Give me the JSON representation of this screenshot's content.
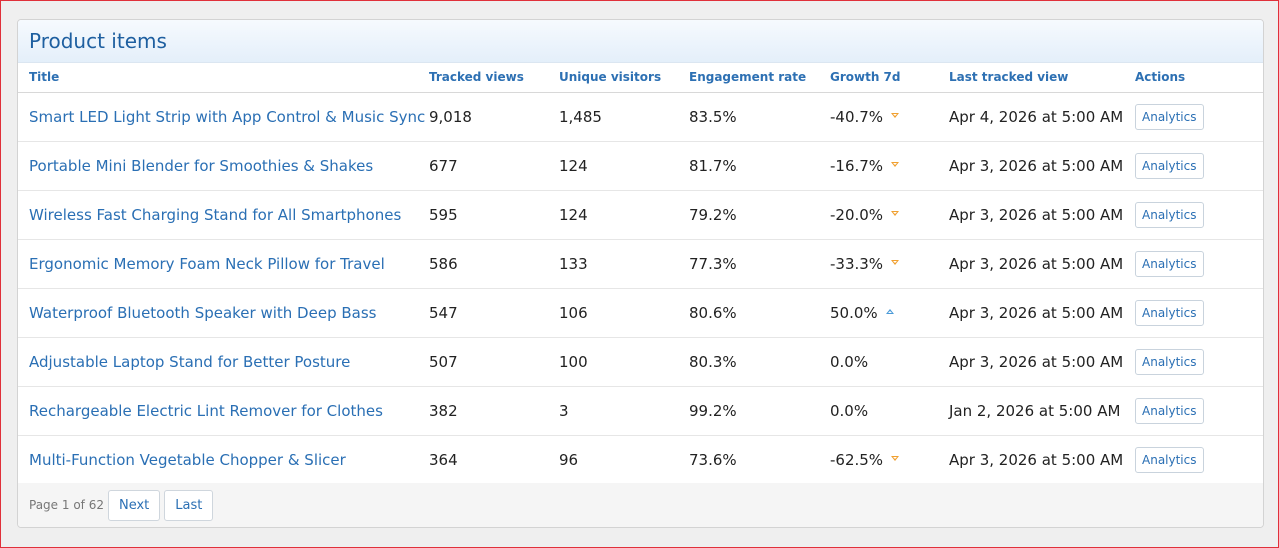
{
  "panel": {
    "title": "Product items"
  },
  "table": {
    "headers": {
      "title": "Title",
      "tracked_views": "Tracked views",
      "unique_visitors": "Unique visitors",
      "engagement_rate": "Engagement rate",
      "growth_7d": "Growth 7d",
      "last_tracked_view": "Last tracked view",
      "actions": "Actions"
    },
    "rows": [
      {
        "title": "Smart LED Light Strip with App Control & Music Sync",
        "tracked_views": "9,018",
        "unique_visitors": "1,485",
        "engagement_rate": "83.5%",
        "growth": "-40.7%",
        "trend": "down",
        "last_tracked": "Apr 4, 2026 at 5:00 AM",
        "action": "Analytics"
      },
      {
        "title": "Portable Mini Blender for Smoothies & Shakes",
        "tracked_views": "677",
        "unique_visitors": "124",
        "engagement_rate": "81.7%",
        "growth": "-16.7%",
        "trend": "down",
        "last_tracked": "Apr 3, 2026 at 5:00 AM",
        "action": "Analytics"
      },
      {
        "title": "Wireless Fast Charging Stand for All Smartphones",
        "tracked_views": "595",
        "unique_visitors": "124",
        "engagement_rate": "79.2%",
        "growth": "-20.0%",
        "trend": "down",
        "last_tracked": "Apr 3, 2026 at 5:00 AM",
        "action": "Analytics"
      },
      {
        "title": "Ergonomic Memory Foam Neck Pillow for Travel",
        "tracked_views": "586",
        "unique_visitors": "133",
        "engagement_rate": "77.3%",
        "growth": "-33.3%",
        "trend": "down",
        "last_tracked": "Apr 3, 2026 at 5:00 AM",
        "action": "Analytics"
      },
      {
        "title": "Waterproof Bluetooth Speaker with Deep Bass",
        "tracked_views": "547",
        "unique_visitors": "106",
        "engagement_rate": "80.6%",
        "growth": "50.0%",
        "trend": "up",
        "last_tracked": "Apr 3, 2026 at 5:00 AM",
        "action": "Analytics"
      },
      {
        "title": "Adjustable Laptop Stand for Better Posture",
        "tracked_views": "507",
        "unique_visitors": "100",
        "engagement_rate": "80.3%",
        "growth": "0.0%",
        "trend": "none",
        "last_tracked": "Apr 3, 2026 at 5:00 AM",
        "action": "Analytics"
      },
      {
        "title": "Rechargeable Electric Lint Remover for Clothes",
        "tracked_views": "382",
        "unique_visitors": "3",
        "engagement_rate": "99.2%",
        "growth": "0.0%",
        "trend": "none",
        "last_tracked": "Jan 2, 2026 at 5:00 AM",
        "action": "Analytics"
      },
      {
        "title": "Multi-Function Vegetable Chopper & Slicer",
        "tracked_views": "364",
        "unique_visitors": "96",
        "engagement_rate": "73.6%",
        "growth": "-62.5%",
        "trend": "down",
        "last_tracked": "Apr 3, 2026 at 5:00 AM",
        "action": "Analytics"
      }
    ]
  },
  "pager": {
    "info": "Page 1 of 62",
    "next_label": "Next",
    "last_label": "Last"
  },
  "colors": {
    "link": "#2a6fb4",
    "header_title": "#1e5fa0",
    "trend_down": "#f0a030",
    "trend_up": "#4a9ad8"
  }
}
